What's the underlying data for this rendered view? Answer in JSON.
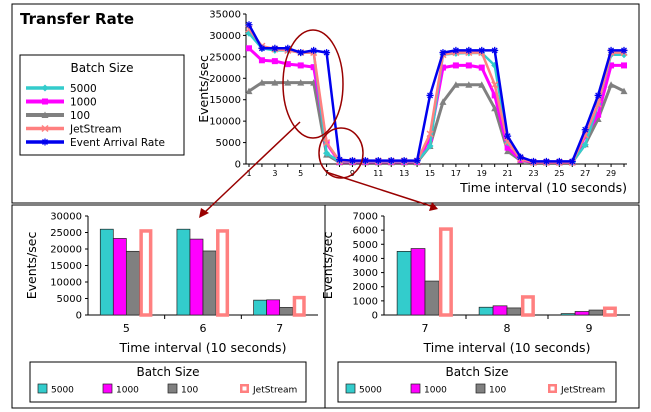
{
  "figure": {
    "title": "Transfer Rate",
    "colors": {
      "5000": "#33cccc",
      "1000": "#ff00ff",
      "100": "#808080",
      "JetStream": "#ff8080",
      "Event Arrival Rate": "#0000ee",
      "annotation": "#990000"
    }
  },
  "chart_data": [
    {
      "type": "line",
      "title": "Transfer Rate",
      "xlabel": "Time interval (10 seconds)",
      "ylabel": "Events/sec",
      "x": [
        1,
        2,
        3,
        4,
        5,
        6,
        7,
        8,
        9,
        10,
        11,
        12,
        13,
        14,
        15,
        16,
        17,
        18,
        19,
        20,
        21,
        22,
        23,
        24,
        25,
        26,
        27,
        28,
        29,
        30
      ],
      "x_tick_labels": [
        "1",
        "3",
        "5",
        "7",
        "9",
        "11",
        "13",
        "15",
        "17",
        "19",
        "21",
        "23",
        "25",
        "27",
        "29"
      ],
      "y_ticks": [
        0,
        5000,
        10000,
        15000,
        20000,
        25000,
        30000,
        35000
      ],
      "ylim": [
        0,
        35000
      ],
      "grid": false,
      "legend": {
        "title": "Batch Size",
        "placement": "left"
      },
      "series": [
        {
          "name": "5000",
          "values": [
            30500,
            27000,
            26500,
            26500,
            26000,
            26000,
            2500,
            600,
            600,
            600,
            600,
            600,
            600,
            600,
            4200,
            25500,
            25800,
            25900,
            25900,
            23000,
            5000,
            1500,
            400,
            400,
            400,
            400,
            4500,
            14000,
            25500,
            25500
          ]
        },
        {
          "name": "1000",
          "values": [
            27000,
            24200,
            24000,
            23300,
            23000,
            22600,
            4800,
            500,
            500,
            500,
            500,
            500,
            500,
            500,
            6000,
            22500,
            23000,
            23000,
            22500,
            16000,
            3800,
            1000,
            400,
            400,
            400,
            400,
            6500,
            11500,
            23000,
            23000
          ]
        },
        {
          "name": "100",
          "values": [
            17000,
            19000,
            19000,
            19000,
            19000,
            19000,
            2200,
            400,
            400,
            400,
            400,
            400,
            400,
            400,
            4200,
            14500,
            18500,
            18500,
            18500,
            13000,
            3000,
            800,
            400,
            400,
            400,
            400,
            4600,
            10500,
            18500,
            17000
          ]
        },
        {
          "name": "JetStream",
          "values": [
            31500,
            27500,
            26800,
            26500,
            26000,
            26000,
            5000,
            700,
            700,
            700,
            700,
            700,
            700,
            700,
            7000,
            25500,
            26000,
            26000,
            26000,
            18500,
            5200,
            1200,
            400,
            400,
            400,
            400,
            6800,
            14000,
            26000,
            26000
          ]
        },
        {
          "name": "Event Arrival Rate",
          "values": [
            32500,
            27000,
            27000,
            27000,
            26000,
            26500,
            26000,
            1000,
            800,
            800,
            800,
            800,
            800,
            800,
            16000,
            26000,
            26500,
            26500,
            26500,
            26500,
            6500,
            1600,
            600,
            600,
            600,
            600,
            8000,
            16000,
            26500,
            26500
          ]
        }
      ]
    },
    {
      "type": "bar",
      "xlabel": "Time interval (10 seconds)",
      "ylabel": "Events/sec",
      "categories": [
        "5",
        "6",
        "7"
      ],
      "y_ticks": [
        0,
        5000,
        10000,
        15000,
        20000,
        25000,
        30000
      ],
      "ylim": [
        0,
        30000
      ],
      "legend": {
        "title": "Batch Size",
        "placement": "bottom"
      },
      "series": [
        {
          "name": "5000",
          "values": [
            26000,
            26000,
            4500
          ]
        },
        {
          "name": "1000",
          "values": [
            23200,
            23000,
            4600
          ]
        },
        {
          "name": "100",
          "values": [
            19300,
            19400,
            2300
          ]
        },
        {
          "name": "JetStream",
          "values": [
            26000,
            26000,
            5800
          ]
        }
      ]
    },
    {
      "type": "bar",
      "xlabel": "Time interval (10 seconds)",
      "ylabel": "Events/sec",
      "categories": [
        "7",
        "8",
        "9"
      ],
      "y_ticks": [
        0,
        1000,
        2000,
        3000,
        4000,
        5000,
        6000,
        7000
      ],
      "ylim": [
        0,
        7000
      ],
      "legend": {
        "title": "Batch Size",
        "placement": "bottom"
      },
      "series": [
        {
          "name": "5000",
          "values": [
            4500,
            550,
            100
          ]
        },
        {
          "name": "1000",
          "values": [
            4700,
            650,
            250
          ]
        },
        {
          "name": "100",
          "values": [
            2400,
            500,
            350
          ]
        },
        {
          "name": "JetStream",
          "values": [
            6200,
            1400,
            600
          ]
        }
      ]
    }
  ]
}
